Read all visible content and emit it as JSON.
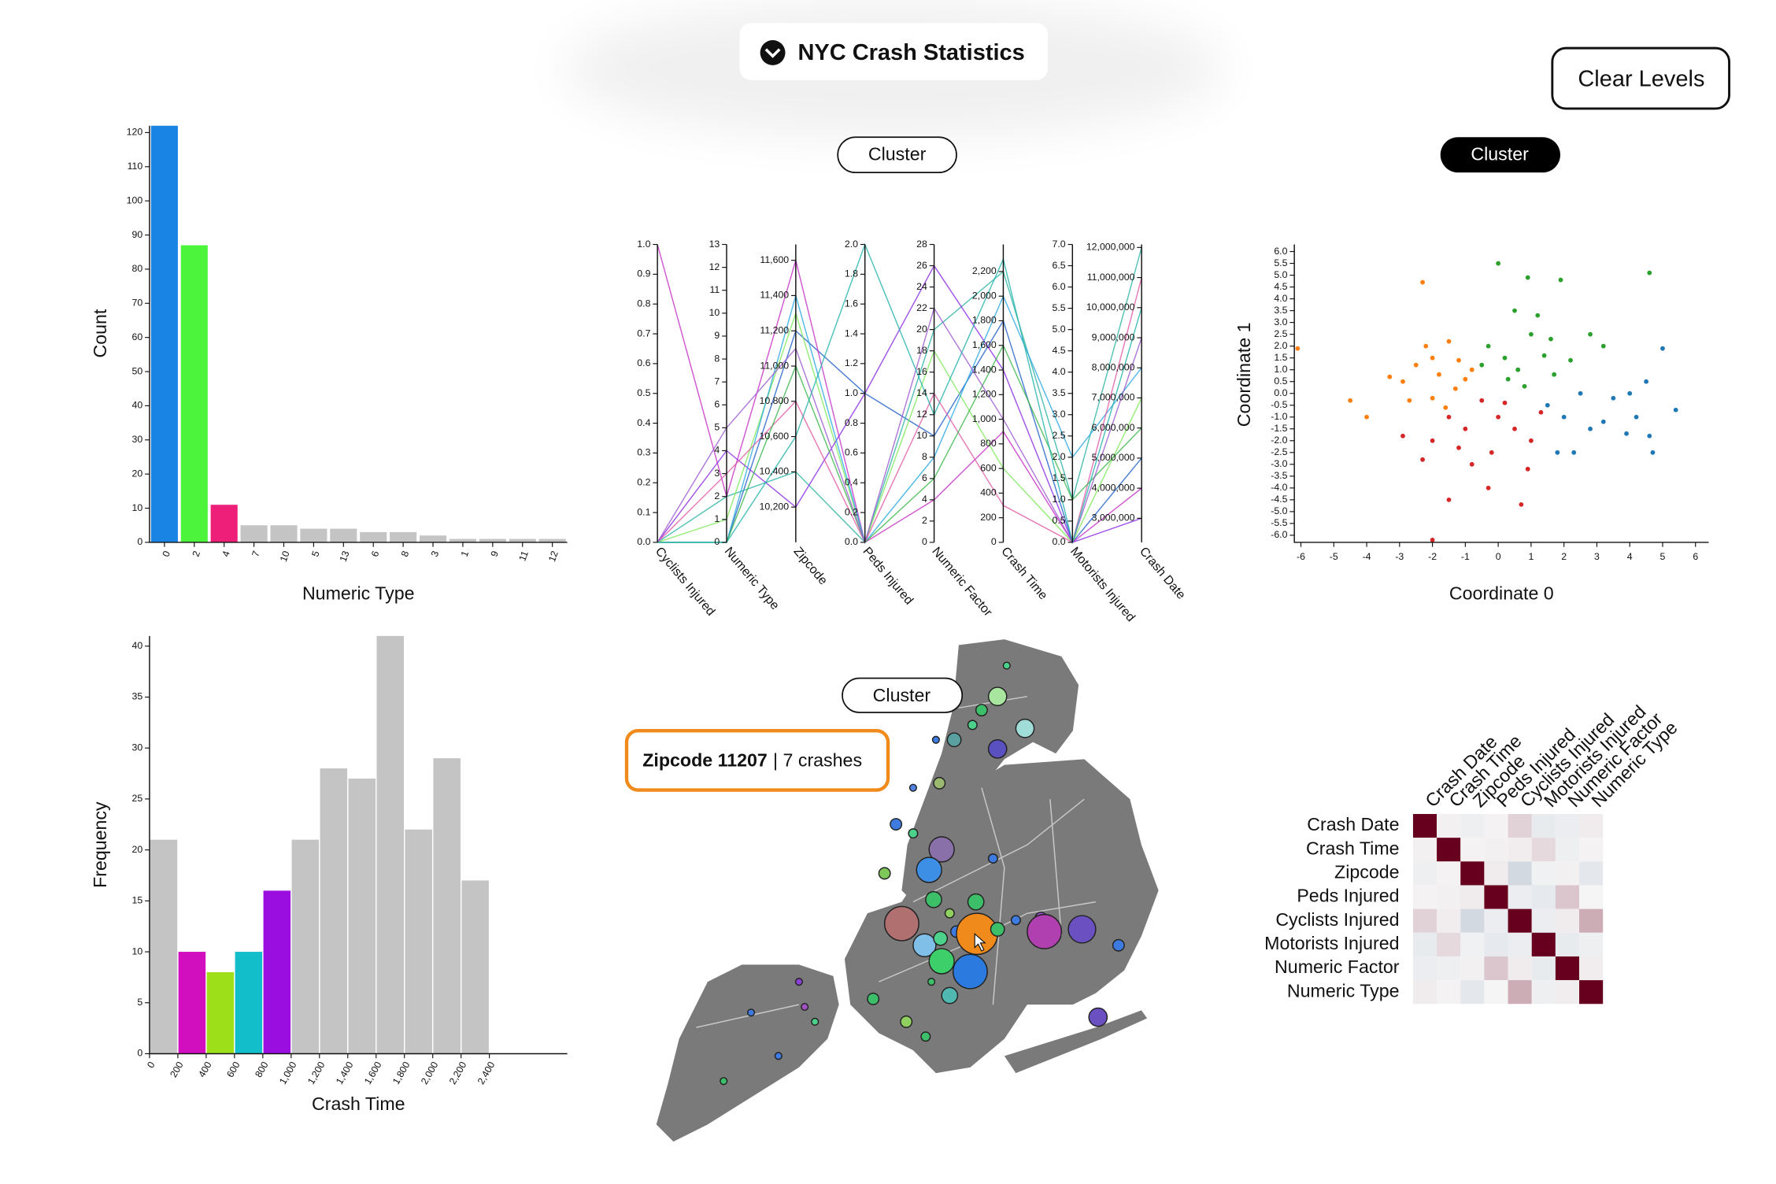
{
  "header": {
    "title": "NYC Crash Statistics"
  },
  "controls": {
    "clear": "Clear Levels",
    "cluster": [
      "Cluster",
      "Cluster",
      "Cluster"
    ]
  },
  "map": {
    "tooltip": {
      "zipcode": "Zipcode 11207",
      "crashes": "| 7 crashes"
    }
  },
  "chart_data": [
    {
      "type": "bar",
      "xlabel": "Numeric Type",
      "ylabel": "Count",
      "categories": [
        "0",
        "2",
        "4",
        "7",
        "10",
        "5",
        "13",
        "6",
        "8",
        "3",
        "1",
        "9",
        "11",
        "12"
      ],
      "values": [
        122,
        87,
        11,
        5,
        5,
        4,
        4,
        3,
        3,
        2,
        1,
        1,
        1,
        1
      ],
      "colors": [
        "#1a84e5",
        "#4cf53c",
        "#ee1f79",
        "#c4c4c4",
        "#c4c4c4",
        "#c4c4c4",
        "#c4c4c4",
        "#c4c4c4",
        "#c4c4c4",
        "#c4c4c4",
        "#c4c4c4",
        "#c4c4c4",
        "#c4c4c4",
        "#c4c4c4"
      ],
      "ylim": [
        0,
        122
      ],
      "yticks": [
        0,
        10,
        20,
        30,
        40,
        50,
        60,
        70,
        80,
        90,
        100,
        110,
        120
      ]
    },
    {
      "type": "parallel",
      "axes": [
        {
          "name": "Cyclists Injured",
          "ylim": [
            0,
            1
          ],
          "ticks": [
            {
              "value": 0,
              "label": "0.0"
            },
            0.1,
            0.2,
            0.3,
            0.4,
            0.5,
            0.6,
            0.7,
            0.8,
            0.9,
            {
              "value": 1,
              "label": "1.0"
            }
          ]
        },
        {
          "name": "Numeric Type",
          "ylim": [
            0,
            13
          ],
          "ticks": [
            0,
            1,
            2,
            3,
            4,
            5,
            6,
            7,
            8,
            9,
            10,
            11,
            12,
            13
          ]
        },
        {
          "name": "Zipcode",
          "ylim": [
            10000,
            11690
          ],
          "ticks": [
            {
              "value": 10200,
              "label": "10,200"
            },
            {
              "value": 10400,
              "label": "10,400"
            },
            {
              "value": 10600,
              "label": "10,600"
            },
            {
              "value": 10800,
              "label": "10,800"
            },
            {
              "value": 11000,
              "label": "11,000"
            },
            {
              "value": 11200,
              "label": "11,200"
            },
            {
              "value": 11400,
              "label": "11,400"
            },
            {
              "value": 11600,
              "label": "11,600"
            }
          ]
        },
        {
          "name": "Peds Injured",
          "ylim": [
            0,
            2
          ],
          "ticks": [
            {
              "value": 0,
              "label": "0.0"
            },
            0.2,
            0.4,
            0.6,
            0.8,
            {
              "value": 1,
              "label": "1.0"
            },
            1.2,
            1.4,
            1.6,
            1.8,
            {
              "value": 2,
              "label": "2.0"
            }
          ]
        },
        {
          "name": "Numeric Factor",
          "ylim": [
            0,
            28
          ],
          "ticks": [
            0,
            2,
            4,
            6,
            8,
            10,
            12,
            14,
            16,
            18,
            20,
            22,
            24,
            26,
            28
          ]
        },
        {
          "name": "Crash Time",
          "ylim": [
            0,
            2420
          ],
          "ticks": [
            0,
            200,
            400,
            600,
            800,
            {
              "value": 1000,
              "label": "1,000"
            },
            {
              "value": 1200,
              "label": "1,200"
            },
            {
              "value": 1400,
              "label": "1,400"
            },
            {
              "value": 1600,
              "label": "1,600"
            },
            {
              "value": 1800,
              "label": "1,800"
            },
            {
              "value": 2000,
              "label": "2,000"
            },
            {
              "value": 2200,
              "label": "2,200"
            }
          ]
        },
        {
          "name": "Motorists Injured",
          "ylim": [
            0,
            7
          ],
          "ticks": [
            {
              "value": 0,
              "label": "0.0"
            },
            0.5,
            {
              "value": 1,
              "label": "1.0"
            },
            1.5,
            {
              "value": 2,
              "label": "2.0"
            },
            2.5,
            {
              "value": 3,
              "label": "3.0"
            },
            3.5,
            {
              "value": 4,
              "label": "4.0"
            },
            4.5,
            {
              "value": 5,
              "label": "5.0"
            },
            5.5,
            {
              "value": 6,
              "label": "6.0"
            },
            6.5,
            {
              "value": 7,
              "label": "7.0"
            }
          ]
        },
        {
          "name": "Crash Date",
          "ylim": [
            2200000,
            12100000
          ],
          "ticks": [
            {
              "value": 3000000,
              "label": "3,000,000"
            },
            {
              "value": 4000000,
              "label": "4,000,000"
            },
            {
              "value": 5000000,
              "label": "5,000,000"
            },
            {
              "value": 6000000,
              "label": "6,000,000"
            },
            {
              "value": 7000000,
              "label": "7,000,000"
            },
            {
              "value": 8000000,
              "label": "8,000,000"
            },
            {
              "value": 9000000,
              "label": "9,000,000"
            },
            {
              "value": 10000000,
              "label": "10,000,000"
            },
            {
              "value": 11000000,
              "label": "11,000,000"
            },
            {
              "value": 12000000,
              "label": "12,000,000"
            }
          ]
        }
      ],
      "lines": [
        {
          "color": "#1f5fc8",
          "values": [
            0,
            0,
            11200,
            1,
            10,
            1800,
            0,
            5000000
          ]
        },
        {
          "color": "#2bb3a3",
          "values": [
            0,
            2,
            10400,
            0,
            20,
            2200,
            1,
            12000000
          ]
        },
        {
          "color": "#c42ec4",
          "values": [
            1,
            2,
            11600,
            0,
            4,
            900,
            0,
            4000000
          ]
        },
        {
          "color": "#7de85a",
          "values": [
            0,
            1,
            11300,
            0,
            18,
            600,
            0,
            7000000
          ]
        },
        {
          "color": "#8a2be2",
          "values": [
            0,
            4,
            10200,
            1,
            26,
            1400,
            0,
            3000000
          ]
        },
        {
          "color": "#28a8e0",
          "values": [
            0,
            0,
            11400,
            0,
            8,
            2000,
            2,
            8000000
          ]
        },
        {
          "color": "#e05aa5",
          "values": [
            0,
            3,
            10800,
            0,
            14,
            300,
            0,
            11000000
          ]
        },
        {
          "color": "#3bb54a",
          "values": [
            0,
            0,
            11000,
            0,
            6,
            1600,
            1,
            6000000
          ]
        },
        {
          "color": "#9b59d0",
          "values": [
            0,
            5,
            11100,
            0,
            22,
            1000,
            0,
            9000000
          ]
        },
        {
          "color": "#20b2aa",
          "values": [
            0,
            0,
            10600,
            2,
            12,
            2300,
            0,
            10000000
          ]
        }
      ]
    },
    {
      "type": "scatter",
      "xlabel": "Coordinate 0",
      "ylabel": "Coordinate 1",
      "xlim": [
        -6.2,
        6.4
      ],
      "ylim": [
        -6.3,
        6.3
      ],
      "xticks": [
        -6,
        -5,
        -4,
        -3,
        -2,
        -1,
        0,
        1,
        2,
        3,
        4,
        5,
        6
      ],
      "yticks": [
        {
          "value": -6,
          "label": "-6.0"
        },
        -5.5,
        {
          "value": -5,
          "label": "-5.0"
        },
        -4.5,
        {
          "value": -4,
          "label": "-4.0"
        },
        -3.5,
        {
          "value": -3,
          "label": "-3.0"
        },
        -2.5,
        {
          "value": -2,
          "label": "-2.0"
        },
        -1.5,
        {
          "value": -1,
          "label": "-1.0"
        },
        -0.5,
        {
          "value": 0,
          "label": "0.0"
        },
        0.5,
        {
          "value": 1,
          "label": "1.0"
        },
        1.5,
        {
          "value": 2,
          "label": "2.0"
        },
        2.5,
        {
          "value": 3,
          "label": "3.0"
        },
        3.5,
        {
          "value": 4,
          "label": "4.0"
        },
        4.5,
        {
          "value": 5,
          "label": "5.0"
        },
        5.5,
        {
          "value": 6,
          "label": "6.0"
        }
      ],
      "series": [
        {
          "color": "#ff7f0e",
          "x": [
            -2.9,
            -2.5,
            -2.2,
            -2,
            -1.8,
            -1.5,
            -1.2,
            -1,
            -2.7,
            -3.3,
            -4.5,
            -4,
            -2.3,
            -1.3,
            -0.8,
            -2,
            -1.6,
            -6.1
          ],
          "y": [
            0.5,
            1.2,
            2,
            1.5,
            0.8,
            2.2,
            1.4,
            0.6,
            -0.3,
            0.7,
            -0.3,
            -1,
            4.7,
            0.2,
            1,
            -0.2,
            -0.6,
            1.9
          ]
        },
        {
          "color": "#2ca02c",
          "x": [
            0,
            0.9,
            1.9,
            0.5,
            -0.3,
            0.2,
            0.6,
            1,
            1.4,
            1.7,
            0.8,
            2.2,
            -0.5,
            1.2,
            2.8,
            3.2,
            4.6,
            0.3,
            1.6
          ],
          "y": [
            5.5,
            4.9,
            4.8,
            3.5,
            2,
            1.5,
            1,
            2.5,
            1.6,
            0.8,
            0.3,
            1.4,
            1.2,
            3.3,
            2.5,
            2,
            5.1,
            0.6,
            2.3
          ]
        },
        {
          "color": "#d62728",
          "x": [
            -0.5,
            0,
            -1,
            -2,
            -1.5,
            -0.2,
            0.5,
            1,
            -0.8,
            -1.5,
            -2.9,
            -2.3,
            0.7,
            -0.3,
            -1.2,
            0.2,
            1.3,
            -2,
            0.9
          ],
          "y": [
            -0.3,
            -1,
            -1.5,
            -2,
            -1,
            -2.5,
            -1.5,
            -2,
            -3,
            -4.5,
            -1.8,
            -2.8,
            -4.7,
            -4,
            -2.3,
            -0.4,
            -0.8,
            -6.2,
            -3.2
          ]
        },
        {
          "color": "#1f77b4",
          "x": [
            1.5,
            2,
            2.3,
            2.8,
            3.5,
            4,
            4.5,
            5,
            5.4,
            4.7,
            3.2,
            2.5,
            4.2,
            1.8,
            3.9,
            4.6
          ],
          "y": [
            -0.5,
            -1,
            -2.5,
            -1.5,
            -0.2,
            0,
            0.5,
            1.9,
            -0.7,
            -2.5,
            -1.2,
            0,
            -1,
            -2.5,
            -1.7,
            -1.8
          ]
        }
      ]
    },
    {
      "type": "histogram",
      "xlabel": "Crash Time",
      "ylabel": "Frequency",
      "bins": [
        0,
        200,
        400,
        600,
        800,
        1000,
        1200,
        1400,
        1600,
        1800,
        2000,
        2200,
        2400
      ],
      "values": [
        21,
        10,
        8,
        10,
        16,
        21,
        28,
        27,
        41,
        22,
        29,
        17
      ],
      "colors": [
        "#c4c4c4",
        "#d10fbe",
        "#9de01a",
        "#12bec9",
        "#9a0ee0",
        "#c4c4c4",
        "#c4c4c4",
        "#c4c4c4",
        "#c4c4c4",
        "#c4c4c4",
        "#c4c4c4",
        "#c4c4c4"
      ],
      "xlim": [
        0,
        2950
      ],
      "ylim": [
        0,
        41
      ],
      "xticks": [
        0,
        200,
        400,
        600,
        800,
        {
          "value": 1000,
          "label": "1,000"
        },
        {
          "value": 1200,
          "label": "1,200"
        },
        {
          "value": 1400,
          "label": "1,400"
        },
        {
          "value": 1600,
          "label": "1,600"
        },
        {
          "value": 1800,
          "label": "1,800"
        },
        {
          "value": 2000,
          "label": "2,000"
        },
        {
          "value": 2200,
          "label": "2,200"
        },
        {
          "value": 2400,
          "label": "2,400"
        }
      ],
      "yticks": [
        0,
        5,
        10,
        15,
        20,
        25,
        30,
        35,
        40
      ]
    },
    {
      "type": "heatmap",
      "labels": [
        "Crash Date",
        "Crash Time",
        "Zipcode",
        "Peds Injured",
        "Cyclists Injured",
        "Motorists Injured",
        "Numeric Factor",
        "Numeric Type"
      ],
      "zlim": [
        -1,
        1
      ],
      "color_scale": [
        "#053061",
        "#f7f7f7",
        "#67001f"
      ],
      "matrix": [
        [
          1,
          0.03,
          -0.04,
          0.02,
          0.15,
          -0.06,
          -0.05,
          0.05
        ],
        [
          0.03,
          1,
          0.02,
          0.03,
          0.04,
          0.12,
          -0.04,
          0.02
        ],
        [
          -0.04,
          0.02,
          1,
          0.05,
          -0.15,
          -0.03,
          0.03,
          -0.08
        ],
        [
          0.02,
          0.03,
          0.05,
          1,
          -0.05,
          -0.07,
          0.2,
          0.01
        ],
        [
          0.15,
          0.04,
          -0.15,
          -0.05,
          1,
          -0.05,
          0.05,
          0.3
        ],
        [
          -0.06,
          0.12,
          -0.03,
          -0.07,
          -0.05,
          1,
          -0.06,
          -0.04
        ],
        [
          -0.05,
          -0.04,
          0.03,
          0.2,
          0.05,
          -0.06,
          1,
          0.04
        ],
        [
          0.05,
          0.02,
          -0.08,
          0.01,
          0.3,
          -0.04,
          0.04,
          1
        ]
      ]
    }
  ]
}
